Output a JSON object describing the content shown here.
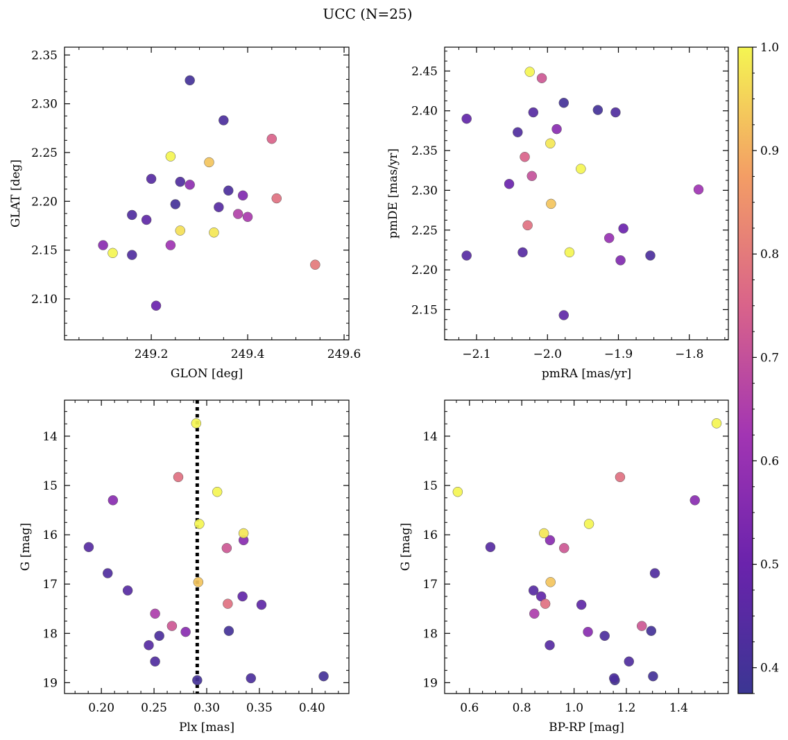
{
  "title": "UCC (N=25)",
  "colorbar": {
    "range": [
      0.375,
      1.0
    ],
    "ticks": [
      0.4,
      0.5,
      0.6,
      0.7,
      0.8,
      0.9,
      1.0
    ],
    "tick_labels": [
      "0.4",
      "0.5",
      "0.6",
      "0.7",
      "0.8",
      "0.9",
      "1.0"
    ],
    "colormap": "plasma"
  },
  "chart_data": [
    {
      "type": "scatter",
      "id": "glon-glat",
      "xlabel": "GLON [deg]",
      "ylabel": "GLAT [deg]",
      "xlim": [
        249.02,
        249.61
      ],
      "ylim": [
        2.058,
        2.358
      ],
      "x_ticks": [
        249.2,
        249.4,
        249.6
      ],
      "x_tick_labels": [
        "249.2",
        "249.4",
        "249.6"
      ],
      "y_ticks": [
        2.1,
        2.15,
        2.2,
        2.25,
        2.3,
        2.35
      ],
      "y_tick_labels": [
        "2.10",
        "2.15",
        "2.20",
        "2.25",
        "2.30",
        "2.35"
      ],
      "y_inverted": false,
      "points": [
        {
          "x": 249.28,
          "y": 2.324,
          "c": 0.4
        },
        {
          "x": 249.35,
          "y": 2.283,
          "c": 0.42
        },
        {
          "x": 249.45,
          "y": 2.264,
          "c": 0.75
        },
        {
          "x": 249.24,
          "y": 2.246,
          "c": 1.0
        },
        {
          "x": 249.32,
          "y": 2.24,
          "c": 0.93
        },
        {
          "x": 249.2,
          "y": 2.223,
          "c": 0.45
        },
        {
          "x": 249.26,
          "y": 2.22,
          "c": 0.43
        },
        {
          "x": 249.28,
          "y": 2.217,
          "c": 0.58
        },
        {
          "x": 249.36,
          "y": 2.211,
          "c": 0.42
        },
        {
          "x": 249.39,
          "y": 2.206,
          "c": 0.55
        },
        {
          "x": 249.46,
          "y": 2.203,
          "c": 0.78
        },
        {
          "x": 249.25,
          "y": 2.197,
          "c": 0.4
        },
        {
          "x": 249.34,
          "y": 2.194,
          "c": 0.45
        },
        {
          "x": 249.38,
          "y": 2.187,
          "c": 0.66
        },
        {
          "x": 249.4,
          "y": 2.184,
          "c": 0.64
        },
        {
          "x": 249.16,
          "y": 2.186,
          "c": 0.43
        },
        {
          "x": 249.19,
          "y": 2.181,
          "c": 0.47
        },
        {
          "x": 249.26,
          "y": 2.17,
          "c": 0.97
        },
        {
          "x": 249.33,
          "y": 2.168,
          "c": 0.98
        },
        {
          "x": 249.1,
          "y": 2.155,
          "c": 0.57
        },
        {
          "x": 249.24,
          "y": 2.155,
          "c": 0.62
        },
        {
          "x": 249.12,
          "y": 2.147,
          "c": 1.0
        },
        {
          "x": 249.16,
          "y": 2.145,
          "c": 0.43
        },
        {
          "x": 249.54,
          "y": 2.135,
          "c": 0.8
        },
        {
          "x": 249.21,
          "y": 2.093,
          "c": 0.5
        }
      ]
    },
    {
      "type": "scatter",
      "id": "pmra-pmde",
      "xlabel": "pmRA [mas/yr]",
      "ylabel": "pmDE [mas/yr]",
      "xlim": [
        -2.145,
        -1.745
      ],
      "ylim": [
        2.112,
        2.48
      ],
      "x_ticks": [
        -2.1,
        -2.0,
        -1.9,
        -1.8
      ],
      "x_tick_labels": [
        "−2.1",
        "−2.0",
        "−1.9",
        "−1.8"
      ],
      "y_ticks": [
        2.15,
        2.2,
        2.25,
        2.3,
        2.35,
        2.4,
        2.45
      ],
      "y_tick_labels": [
        "2.15",
        "2.20",
        "2.25",
        "2.30",
        "2.35",
        "2.40",
        "2.45"
      ],
      "y_inverted": false,
      "points": [
        {
          "x": -2.025,
          "y": 2.449,
          "c": 1.0
        },
        {
          "x": -2.008,
          "y": 2.441,
          "c": 0.72
        },
        {
          "x": -1.977,
          "y": 2.41,
          "c": 0.4
        },
        {
          "x": -1.929,
          "y": 2.401,
          "c": 0.4
        },
        {
          "x": -2.02,
          "y": 2.398,
          "c": 0.45
        },
        {
          "x": -1.904,
          "y": 2.398,
          "c": 0.43
        },
        {
          "x": -2.114,
          "y": 2.39,
          "c": 0.48
        },
        {
          "x": -1.987,
          "y": 2.377,
          "c": 0.57
        },
        {
          "x": -2.042,
          "y": 2.373,
          "c": 0.43
        },
        {
          "x": -1.996,
          "y": 2.359,
          "c": 0.98
        },
        {
          "x": -2.032,
          "y": 2.342,
          "c": 0.75
        },
        {
          "x": -1.953,
          "y": 2.327,
          "c": 1.0
        },
        {
          "x": -2.022,
          "y": 2.318,
          "c": 0.7
        },
        {
          "x": -2.054,
          "y": 2.308,
          "c": 0.5
        },
        {
          "x": -1.787,
          "y": 2.301,
          "c": 0.62
        },
        {
          "x": -1.995,
          "y": 2.283,
          "c": 0.93
        },
        {
          "x": -2.028,
          "y": 2.256,
          "c": 0.78
        },
        {
          "x": -1.893,
          "y": 2.252,
          "c": 0.5
        },
        {
          "x": -1.913,
          "y": 2.24,
          "c": 0.6
        },
        {
          "x": -2.035,
          "y": 2.222,
          "c": 0.45
        },
        {
          "x": -1.969,
          "y": 2.222,
          "c": 1.0
        },
        {
          "x": -1.855,
          "y": 2.218,
          "c": 0.42
        },
        {
          "x": -2.114,
          "y": 2.218,
          "c": 0.45
        },
        {
          "x": -1.897,
          "y": 2.212,
          "c": 0.55
        },
        {
          "x": -1.977,
          "y": 2.143,
          "c": 0.47
        }
      ]
    },
    {
      "type": "scatter",
      "id": "plx-g",
      "xlabel": "Plx [mas]",
      "ylabel": "G [mag]",
      "xlim": [
        0.165,
        0.435
      ],
      "ylim": [
        19.22,
        13.27
      ],
      "x_ticks": [
        0.2,
        0.25,
        0.3,
        0.35,
        0.4
      ],
      "x_tick_labels": [
        "0.20",
        "0.25",
        "0.30",
        "0.35",
        "0.40"
      ],
      "y_ticks": [
        14,
        15,
        16,
        17,
        18,
        19
      ],
      "y_tick_labels": [
        "14",
        "15",
        "16",
        "17",
        "18",
        "19"
      ],
      "y_inverted": true,
      "vline_x": 0.291,
      "points": [
        {
          "x": 0.29,
          "y": 13.74,
          "c": 1.0
        },
        {
          "x": 0.273,
          "y": 14.83,
          "c": 0.78
        },
        {
          "x": 0.31,
          "y": 15.13,
          "c": 1.0
        },
        {
          "x": 0.211,
          "y": 15.3,
          "c": 0.57
        },
        {
          "x": 0.293,
          "y": 15.78,
          "c": 1.0
        },
        {
          "x": 0.335,
          "y": 15.97,
          "c": 0.98
        },
        {
          "x": 0.335,
          "y": 16.11,
          "c": 0.57
        },
        {
          "x": 0.188,
          "y": 16.25,
          "c": 0.45
        },
        {
          "x": 0.319,
          "y": 16.27,
          "c": 0.72
        },
        {
          "x": 0.206,
          "y": 16.78,
          "c": 0.43
        },
        {
          "x": 0.292,
          "y": 16.96,
          "c": 0.93
        },
        {
          "x": 0.225,
          "y": 17.13,
          "c": 0.45
        },
        {
          "x": 0.334,
          "y": 17.25,
          "c": 0.48
        },
        {
          "x": 0.32,
          "y": 17.4,
          "c": 0.78
        },
        {
          "x": 0.352,
          "y": 17.42,
          "c": 0.47
        },
        {
          "x": 0.251,
          "y": 17.6,
          "c": 0.65
        },
        {
          "x": 0.267,
          "y": 17.85,
          "c": 0.72
        },
        {
          "x": 0.321,
          "y": 17.95,
          "c": 0.4
        },
        {
          "x": 0.28,
          "y": 17.97,
          "c": 0.57
        },
        {
          "x": 0.255,
          "y": 18.05,
          "c": 0.42
        },
        {
          "x": 0.245,
          "y": 18.24,
          "c": 0.45
        },
        {
          "x": 0.251,
          "y": 18.57,
          "c": 0.43
        },
        {
          "x": 0.411,
          "y": 18.87,
          "c": 0.4
        },
        {
          "x": 0.342,
          "y": 18.91,
          "c": 0.42
        },
        {
          "x": 0.291,
          "y": 18.95,
          "c": 0.4
        }
      ]
    },
    {
      "type": "scatter",
      "id": "bprp-g",
      "xlabel": "BP-RP [mag]",
      "ylabel": "G [mag]",
      "xlim": [
        0.505,
        1.59
      ],
      "ylim": [
        19.22,
        13.27
      ],
      "x_ticks": [
        0.6,
        0.8,
        1.0,
        1.2,
        1.4
      ],
      "x_tick_labels": [
        "0.6",
        "0.8",
        "1.0",
        "1.2",
        "1.4"
      ],
      "y_ticks": [
        14,
        15,
        16,
        17,
        18,
        19
      ],
      "y_tick_labels": [
        "14",
        "15",
        "16",
        "17",
        "18",
        "19"
      ],
      "y_inverted": true,
      "points": [
        {
          "x": 1.545,
          "y": 13.74,
          "c": 1.0
        },
        {
          "x": 1.176,
          "y": 14.83,
          "c": 0.78
        },
        {
          "x": 0.555,
          "y": 15.13,
          "c": 1.0
        },
        {
          "x": 1.462,
          "y": 15.3,
          "c": 0.57
        },
        {
          "x": 1.057,
          "y": 15.78,
          "c": 1.0
        },
        {
          "x": 0.885,
          "y": 15.97,
          "c": 0.98
        },
        {
          "x": 0.908,
          "y": 16.11,
          "c": 0.57
        },
        {
          "x": 0.68,
          "y": 16.25,
          "c": 0.45
        },
        {
          "x": 0.962,
          "y": 16.27,
          "c": 0.72
        },
        {
          "x": 1.309,
          "y": 16.78,
          "c": 0.43
        },
        {
          "x": 0.91,
          "y": 16.96,
          "c": 0.93
        },
        {
          "x": 0.845,
          "y": 17.13,
          "c": 0.45
        },
        {
          "x": 0.874,
          "y": 17.25,
          "c": 0.48
        },
        {
          "x": 0.89,
          "y": 17.4,
          "c": 0.78
        },
        {
          "x": 1.028,
          "y": 17.42,
          "c": 0.47
        },
        {
          "x": 0.848,
          "y": 17.6,
          "c": 0.65
        },
        {
          "x": 1.259,
          "y": 17.85,
          "c": 0.72
        },
        {
          "x": 1.295,
          "y": 17.95,
          "c": 0.4
        },
        {
          "x": 1.053,
          "y": 17.97,
          "c": 0.57
        },
        {
          "x": 1.117,
          "y": 18.05,
          "c": 0.42
        },
        {
          "x": 0.907,
          "y": 18.24,
          "c": 0.45
        },
        {
          "x": 1.21,
          "y": 18.57,
          "c": 0.43
        },
        {
          "x": 1.302,
          "y": 18.87,
          "c": 0.4
        },
        {
          "x": 1.153,
          "y": 18.91,
          "c": 0.42
        },
        {
          "x": 1.156,
          "y": 18.95,
          "c": 0.4
        }
      ]
    }
  ]
}
